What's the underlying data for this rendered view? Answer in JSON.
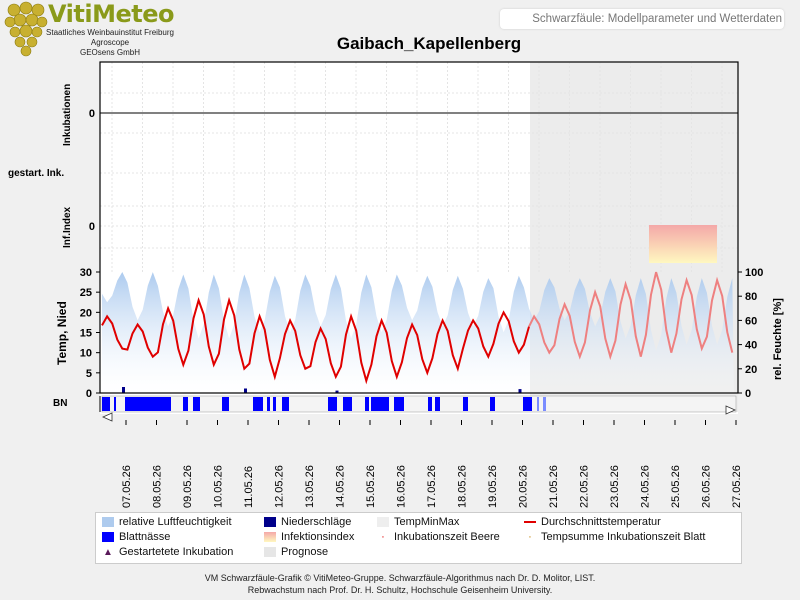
{
  "header": {
    "brand": "VitiMeteo",
    "org_lines": [
      "Staatliches Weinbauinstitut Freiburg",
      "Agroscope",
      "GEOsens GmbH"
    ],
    "badge": "Schwarzfäule: Modellparameter und Wetterdaten",
    "station": "Gaibach_Kapellenberg"
  },
  "axes": {
    "inkubationen_label": "Inkubationen",
    "gestart_label": "gestart. Ink.",
    "infindex_label": "Inf.Index",
    "temp_label": "Temp, Nied",
    "bn_label": "BN",
    "rh_label": "rel. Feuchte [%]",
    "inkubationen_tick": "0",
    "infindex_tick": "0",
    "temp_ticks": [
      "30",
      "25",
      "20",
      "15",
      "10",
      "5",
      "0"
    ],
    "rh_ticks": [
      "100",
      "80",
      "60",
      "40",
      "20",
      "0"
    ]
  },
  "legend": {
    "rh": "relative Luftfeuchtigkeit",
    "rain": "Niederschläge",
    "tminmax": "TempMinMax",
    "tavg": "Durchschnittstemperatur",
    "leafwet": "Blattnässe",
    "infidx": "Infektionsindex",
    "inkberry": "Inkubationszeit Beere",
    "tsum": "Tempsumme Inkubationszeit Blatt",
    "started": "Gestartetete Inkubation",
    "forecast": "Prognose"
  },
  "footer": [
    "VM Schwarzfäule-Grafik © VitiMeteo-Gruppe. Schwarzfäule-Algorithmus nach Dr. D. Molitor, LIST.",
    "Rebwachstum nach Prof. Dr. H. Schultz, Hochschule Geisenheim University."
  ],
  "colors": {
    "rh": "#aecbee",
    "tavg": "#e00000",
    "tavg_forecast": "#ee8080",
    "rain": "#00008b",
    "leafwet": "#0000ff",
    "forecast_bg": "#e6e6e6",
    "infidx_top": "#f4a8a8",
    "infidx_bottom": "#fff8c0"
  },
  "chart_data": {
    "type": "line",
    "title": "Gaibach_Kapellenberg",
    "x_dates": [
      "07.05.26",
      "08.05.26",
      "09.05.26",
      "10.05.26",
      "11.05.26",
      "12.05.26",
      "13.05.26",
      "14.05.26",
      "15.05.26",
      "16.05.26",
      "17.05.26",
      "18.05.26",
      "19.05.26",
      "20.05.26",
      "21.05.26",
      "22.05.26",
      "23.05.26",
      "24.05.26",
      "25.05.26",
      "26.05.26",
      "27.05.26"
    ],
    "forecast_start": "21.05.26",
    "temp_ylim": [
      0,
      30
    ],
    "rh_ylim": [
      0,
      100
    ],
    "series": [
      {
        "name": "Durchschnittstemperatur",
        "daily_min": [
          11,
          9,
          7,
          7,
          6,
          4,
          6,
          4,
          3,
          4,
          5,
          6,
          9,
          10,
          10,
          9,
          9,
          9,
          10,
          11,
          10
        ],
        "daily_max": [
          19,
          17,
          21,
          23,
          23,
          19,
          18,
          16,
          19,
          18,
          17,
          18,
          18,
          20,
          19,
          22,
          25,
          27,
          30,
          28,
          28
        ]
      },
      {
        "name": "relative Luftfeuchtigkeit",
        "daily_min": [
          75,
          60,
          55,
          45,
          45,
          50,
          50,
          55,
          45,
          50,
          60,
          55,
          55,
          50,
          60,
          60,
          55,
          45,
          35,
          40,
          40
        ],
        "daily_max": [
          100,
          100,
          98,
          98,
          98,
          97,
          98,
          98,
          98,
          98,
          97,
          97,
          95,
          97,
          95,
          95,
          95,
          95,
          95,
          95,
          95
        ]
      },
      {
        "name": "Niederschläge",
        "dates": [
          "07.05.26",
          "11.05.26",
          "14.05.26",
          "20.05.26"
        ],
        "values": [
          2,
          1.5,
          0.8,
          1.3
        ]
      },
      {
        "name": "Infektionsindex",
        "forecast_from": "25.05.26",
        "forecast_to": "27.05.26"
      }
    ]
  }
}
